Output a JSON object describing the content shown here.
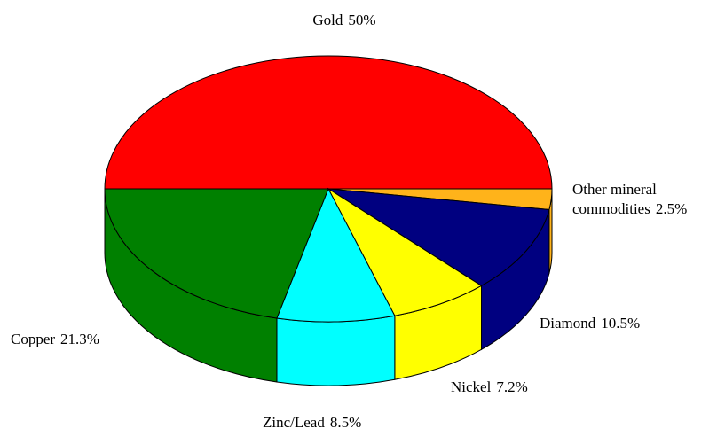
{
  "chart_data": {
    "type": "pie3d",
    "categories": [
      "Gold",
      "Other mineral commodities",
      "Diamond",
      "Nickel",
      "Zinc/Lead",
      "Copper"
    ],
    "values": [
      50,
      2.5,
      10.5,
      7.2,
      8.5,
      21.3
    ],
    "value_labels": [
      "50%",
      "2.5%",
      "10.5%",
      "7.2%",
      "8.5%",
      "21.3%"
    ],
    "colors": [
      "#ff0000",
      "#ffb31a",
      "#000080",
      "#ffff00",
      "#00ffff",
      "#008000"
    ]
  }
}
